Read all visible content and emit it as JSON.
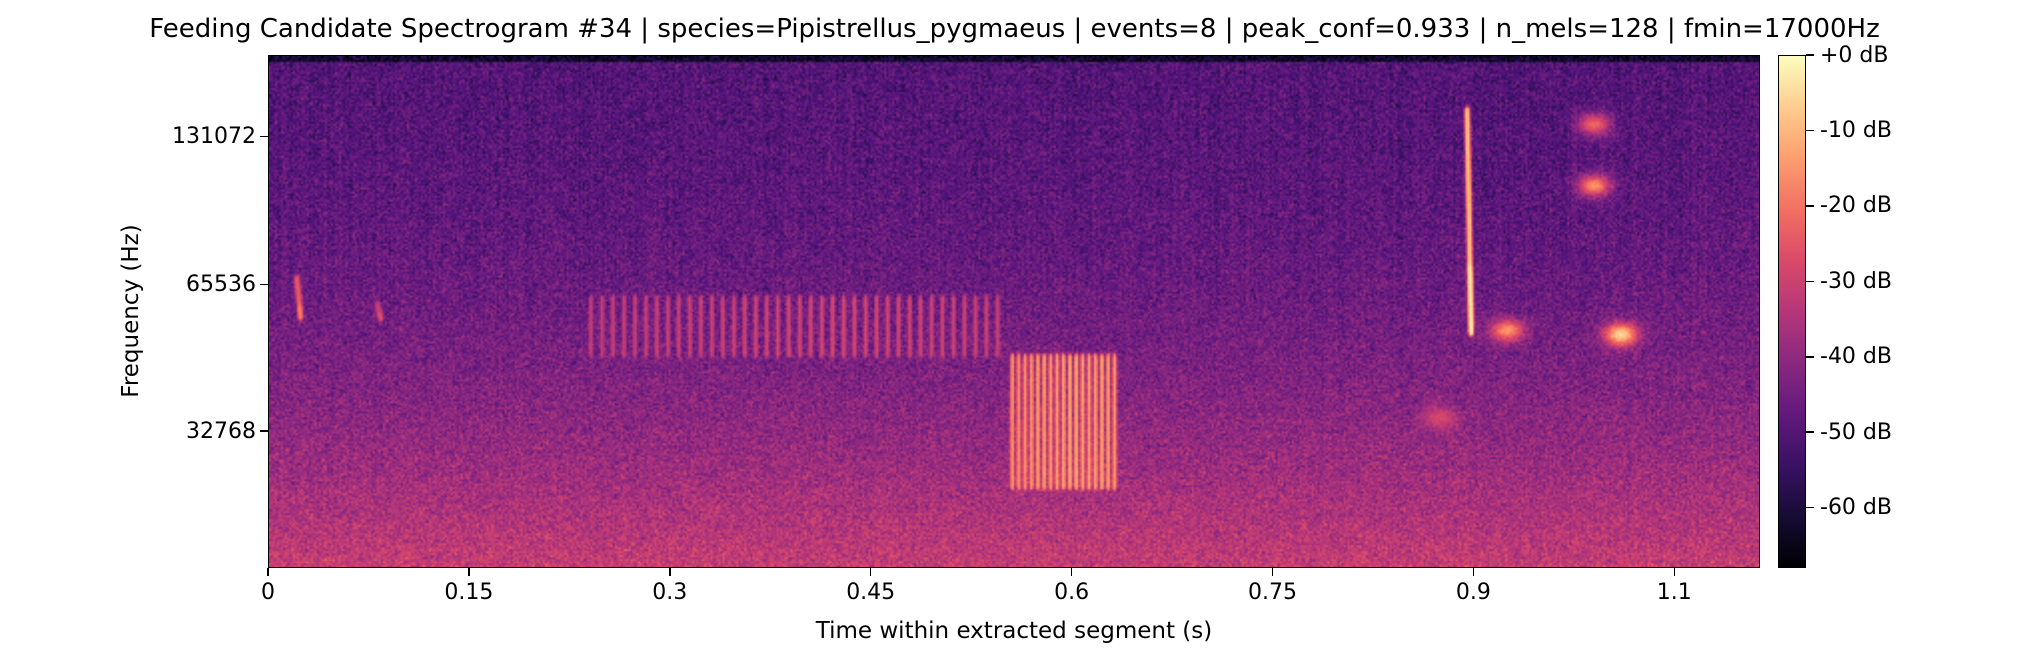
{
  "chart_data": {
    "type": "heatmap",
    "title": "Feeding Candidate Spectrogram #34 | species=Pipistrellus_pygmaeus | events=8 | peak_conf=0.933 | n_mels=128 | fmin=17000Hz",
    "xlabel": "Time within extracted segment (s)",
    "ylabel": "Frequency (Hz)",
    "xlim": [
      0,
      1.114
    ],
    "x_ticks": [
      0,
      0.15,
      0.3,
      0.45,
      0.6,
      0.75,
      0.9,
      1.05
    ],
    "x_tick_labels": [
      "0",
      "0.15",
      "0.3",
      "0.45",
      "0.6",
      "0.75",
      "0.9",
      "1.1"
    ],
    "y_scale": "mel",
    "y_ticks": [
      131072,
      65536,
      32768
    ],
    "y_tick_labels": [
      "131072",
      "65536",
      "32768"
    ],
    "colormap": "magma",
    "colorbar": {
      "range_db": [
        -68,
        0
      ],
      "ticks": [
        0,
        -10,
        -20,
        -30,
        -40,
        -50,
        -60
      ],
      "tick_labels": [
        "+0 dB",
        "-10 dB",
        "-20 dB",
        "-30 dB",
        "-40 dB",
        "-50 dB",
        "-60 dB"
      ]
    },
    "grid": false,
    "features": [
      {
        "kind": "call",
        "t": 0.02,
        "f_from": 68000,
        "f_to": 56000,
        "db": -18
      },
      {
        "kind": "call",
        "t": 0.08,
        "f_from": 60000,
        "f_to": 56000,
        "db": -25
      },
      {
        "kind": "pulse_train",
        "t_start": 0.24,
        "t_end": 0.55,
        "f_low": 47000,
        "f_high": 62000,
        "db": -28
      },
      {
        "kind": "pulse_train",
        "t_start": 0.555,
        "t_end": 0.635,
        "f_low": 25000,
        "f_high": 47000,
        "db": -12
      },
      {
        "kind": "blob",
        "t": 0.875,
        "f": 35000,
        "db": -28
      },
      {
        "kind": "call",
        "t": 0.895,
        "f_from": 150000,
        "f_to": 52000,
        "db": -3
      },
      {
        "kind": "blob",
        "t": 0.925,
        "f": 53000,
        "db": -15
      },
      {
        "kind": "blob",
        "t": 1.01,
        "f": 52000,
        "db": -5
      },
      {
        "kind": "blob",
        "t": 0.99,
        "f": 140000,
        "db": -22
      },
      {
        "kind": "blob",
        "t": 0.99,
        "f": 105000,
        "db": -15
      }
    ]
  }
}
